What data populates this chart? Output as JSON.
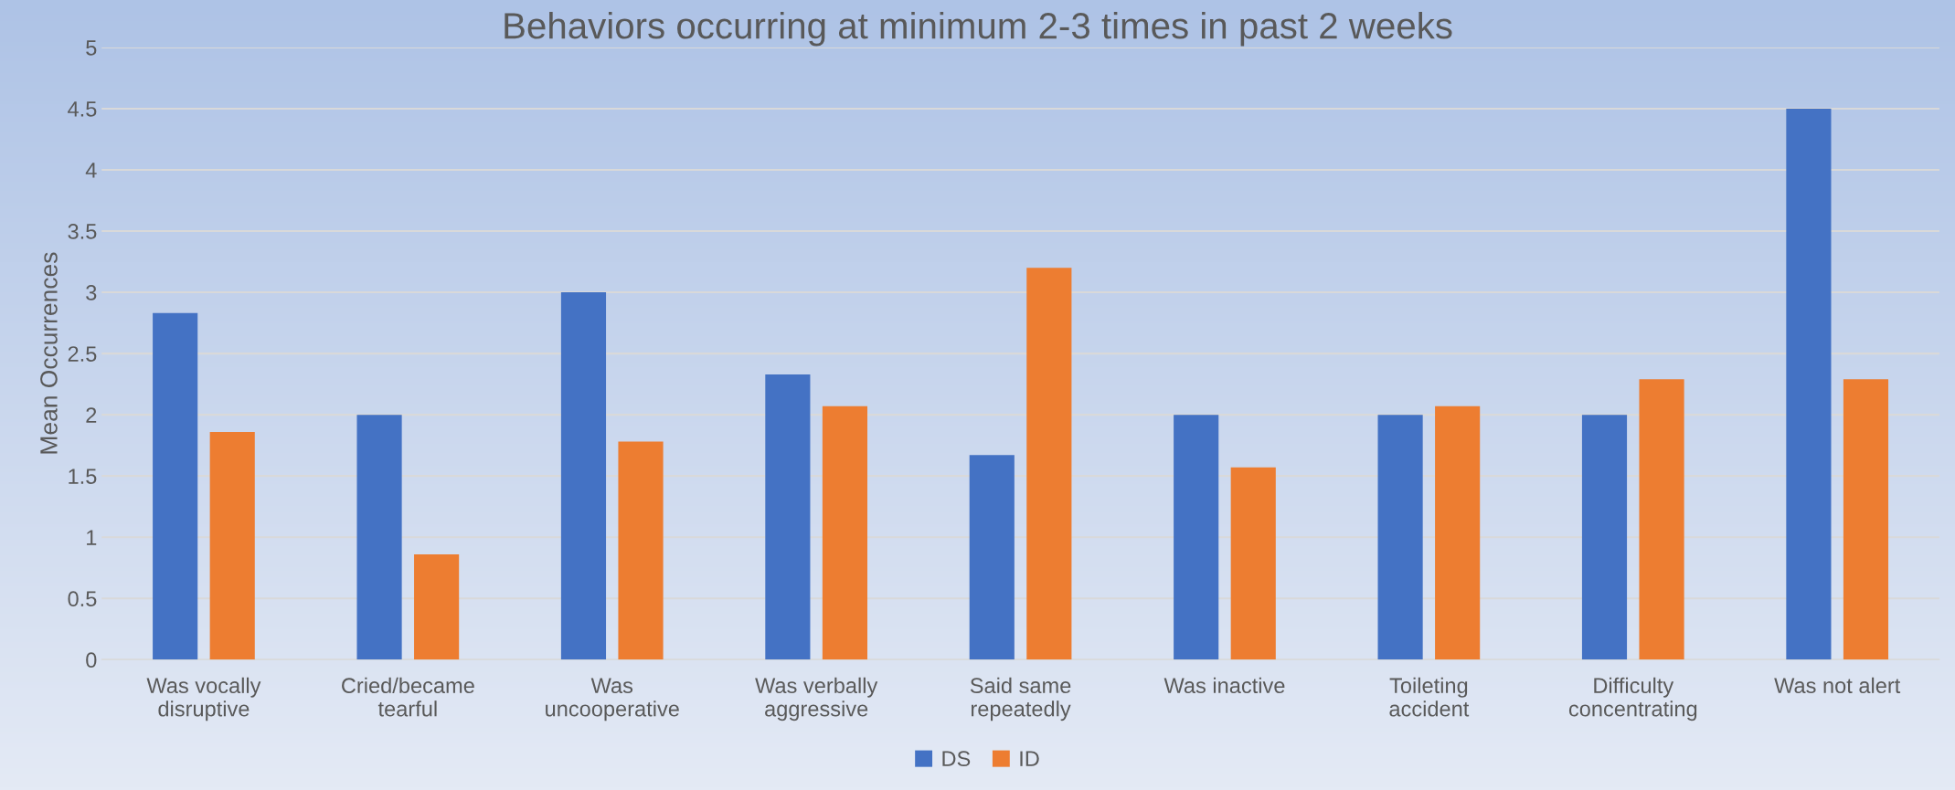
{
  "chart_data": {
    "type": "bar",
    "title": "Behaviors occurring at minimum 2-3 times in past 2 weeks",
    "ylabel": "Mean Occurrences",
    "categories": [
      "Was vocally\ndisruptive",
      "Cried/became\ntearful",
      "Was\nuncooperative",
      "Was verbally\naggressive",
      "Said same\nrepeatedly",
      "Was inactive",
      "Toileting\naccident",
      "Difficulty\nconcentrating",
      "Was not alert"
    ],
    "series": [
      {
        "name": "DS",
        "color": "#4472c4",
        "values": [
          2.83,
          2.0,
          3.0,
          2.33,
          1.67,
          2.0,
          2.0,
          2.0,
          4.5
        ]
      },
      {
        "name": "ID",
        "color": "#ed7d31",
        "values": [
          1.86,
          0.86,
          1.78,
          2.07,
          3.2,
          1.57,
          2.07,
          2.29,
          2.29
        ]
      }
    ],
    "ylim": [
      0,
      5
    ],
    "yticks": [
      0,
      0.5,
      1,
      1.5,
      2,
      2.5,
      3,
      3.5,
      4,
      4.5,
      5
    ],
    "grid": "y",
    "legend": "bottom"
  }
}
